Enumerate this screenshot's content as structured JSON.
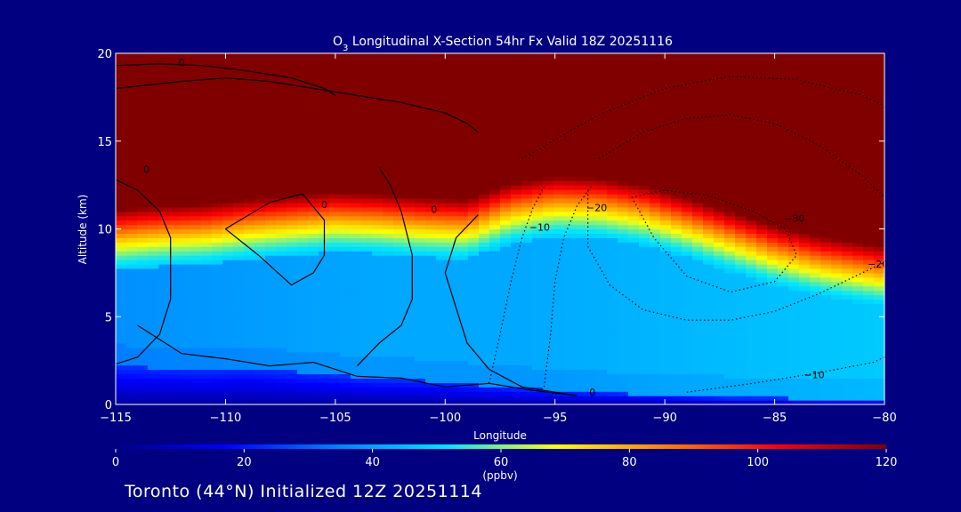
{
  "chart_data": {
    "type": "contour",
    "title_species": "O",
    "title_subscript": "3",
    "title_rest": " Longitudinal X-Section 54hr  Fx Valid 18Z 20251116",
    "xlabel": "Longitude",
    "ylabel": "Altitude (km)",
    "xlim": [
      -115,
      -80
    ],
    "ylim": [
      0,
      20
    ],
    "x_ticks": [
      -115,
      -110,
      -105,
      -100,
      -95,
      -90,
      -85,
      -80
    ],
    "x_tick_labels": [
      "−115",
      "−110",
      "−105",
      "−100",
      "−95",
      "−90",
      "−85",
      "−80"
    ],
    "y_ticks": [
      0,
      5,
      10,
      15,
      20
    ],
    "y_tick_labels": [
      "0",
      "5",
      "10",
      "15",
      "20"
    ],
    "colorbar": {
      "label": "(ppbv)",
      "min": 0,
      "max": 120,
      "ticks": [
        0,
        20,
        40,
        60,
        80,
        100,
        120
      ],
      "tick_labels": [
        "0",
        "20",
        "40",
        "60",
        "80",
        "100",
        "120"
      ],
      "colors": [
        "#000080",
        "#0000ff",
        "#0080ff",
        "#00e5ff",
        "#ffff00",
        "#ff8000",
        "#ff0000",
        "#800000"
      ]
    },
    "field_profile": {
      "longitudes": [
        -115,
        -113,
        -111,
        -109,
        -107,
        -105,
        -103,
        -101,
        -99,
        -97,
        -95,
        -93,
        -91,
        -89,
        -87,
        -85,
        -83,
        -81,
        -80
      ],
      "tropopause_km": [
        10.5,
        10.7,
        10.8,
        11.1,
        11.3,
        11.5,
        11.4,
        11.2,
        11.1,
        12.0,
        12.4,
        12.3,
        11.9,
        11.2,
        10.4,
        9.6,
        9.0,
        8.6,
        8.4
      ],
      "boundary_layer_top_km": [
        2.2,
        2.1,
        2.0,
        2.1,
        1.9,
        1.7,
        1.5,
        1.4,
        1.2,
        1.0,
        0.8,
        0.7,
        0.6,
        0.5,
        0.4,
        0.4,
        0.3,
        0.3,
        0.3
      ]
    },
    "contour_labels": [
      {
        "text": "0",
        "lon": -112,
        "alt": 19.3
      },
      {
        "text": "0",
        "lon": -105.5,
        "alt": 11.2
      },
      {
        "text": "0",
        "lon": -100.5,
        "alt": 10.9
      },
      {
        "text": "0",
        "lon": -113.6,
        "alt": 13.2
      },
      {
        "text": "0",
        "lon": -93.3,
        "alt": 0.5
      },
      {
        "text": "−10",
        "lon": -95.7,
        "alt": 9.9
      },
      {
        "text": "−20",
        "lon": -93.1,
        "alt": 11.0
      },
      {
        "text": "−30",
        "lon": -84.1,
        "alt": 10.4
      },
      {
        "text": "−20",
        "lon": -80.3,
        "alt": 7.8
      },
      {
        "text": "−10",
        "lon": -83.2,
        "alt": 1.5
      }
    ],
    "solid_contours": [
      {
        "lon": [
          -115,
          -112,
          -110,
          -108,
          -106,
          -104,
          -102,
          -100,
          -99,
          -98.5
        ],
        "alt": [
          18.0,
          18.4,
          18.6,
          18.4,
          18.0,
          17.6,
          17.2,
          16.6,
          16.0,
          15.5
        ]
      },
      {
        "lon": [
          -115,
          -113,
          -111,
          -109,
          -107,
          -105.5,
          -105
        ],
        "alt": [
          19.3,
          19.4,
          19.3,
          19.0,
          18.6,
          18.0,
          17.6
        ]
      },
      {
        "lon": [
          -115,
          -114,
          -113,
          -112.5,
          -112.5,
          -113,
          -114,
          -115
        ],
        "alt": [
          12.8,
          12.2,
          11.0,
          9.5,
          6.0,
          4.0,
          2.7,
          2.3
        ]
      },
      {
        "lon": [
          -110,
          -108.5,
          -107,
          -106,
          -105.5,
          -105.5,
          -106.5,
          -108,
          -110
        ],
        "alt": [
          10.0,
          8.5,
          6.8,
          7.5,
          8.5,
          10.5,
          12.0,
          11.5,
          10.0
        ]
      },
      {
        "lon": [
          -103,
          -102.5,
          -102,
          -101.5,
          -101.5,
          -102,
          -103,
          -104
        ],
        "alt": [
          13.5,
          12.5,
          11.0,
          8.5,
          6.0,
          4.5,
          3.5,
          2.2
        ]
      },
      {
        "lon": [
          -98.5,
          -99.5,
          -100,
          -99.5,
          -99,
          -98,
          -96.5,
          -95,
          -94
        ],
        "alt": [
          10.8,
          9.5,
          7.5,
          5.5,
          3.5,
          2.0,
          1.0,
          0.7,
          0.5
        ]
      },
      {
        "lon": [
          -114,
          -112,
          -110,
          -108,
          -106,
          -104,
          -102,
          -100,
          -98,
          -96,
          -94
        ],
        "alt": [
          4.5,
          2.9,
          2.6,
          2.2,
          2.4,
          1.6,
          1.5,
          1.0,
          1.2,
          0.8,
          0.5
        ]
      }
    ],
    "dotted_contours": [
      {
        "lon": [
          -98,
          -97.5,
          -97,
          -96.5,
          -96,
          -95.5
        ],
        "alt": [
          1.2,
          4.0,
          7.0,
          9.5,
          11.2,
          12.4
        ]
      },
      {
        "lon": [
          -95.5,
          -95.2,
          -95,
          -94.6,
          -94.0,
          -93.3
        ],
        "alt": [
          1.0,
          4.0,
          7.0,
          9.5,
          11.3,
          12.5
        ]
      },
      {
        "lon": [
          -93.5,
          -93.5,
          -92.5,
          -91.0,
          -89.0,
          -87.0,
          -85.0,
          -83.0,
          -81.0,
          -80.0
        ],
        "alt": [
          12.2,
          9.0,
          6.8,
          5.4,
          4.8,
          4.8,
          5.3,
          6.3,
          7.5,
          8.1
        ]
      },
      {
        "lon": [
          -91.5,
          -90.5,
          -89.0,
          -87.0,
          -85.0,
          -84.0,
          -84.5,
          -86.0,
          -88.0,
          -90.0,
          -91.5
        ],
        "alt": [
          11.8,
          9.5,
          7.3,
          6.4,
          7.0,
          8.5,
          10.0,
          11.0,
          11.9,
          12.2,
          11.8
        ]
      },
      {
        "lon": [
          -93.0,
          -91.0,
          -89.0,
          -87.0,
          -85.0,
          -83.0,
          -81.0,
          -80.0
        ],
        "alt": [
          14.0,
          15.5,
          16.3,
          16.5,
          16.0,
          14.8,
          13.0,
          11.8
        ]
      },
      {
        "lon": [
          -96.5,
          -93.0,
          -90.0,
          -87.0,
          -84.0,
          -81.0,
          -80.0
        ],
        "alt": [
          14.0,
          16.5,
          18.0,
          18.7,
          18.5,
          17.6,
          17.0
        ]
      },
      {
        "lon": [
          -89.0,
          -86.0,
          -83.0,
          -80.5,
          -80.0
        ],
        "alt": [
          0.7,
          1.2,
          1.8,
          2.4,
          2.7
        ]
      }
    ]
  },
  "footer": {
    "text": "Toronto (44°N) Initialized 12Z 20251114"
  }
}
